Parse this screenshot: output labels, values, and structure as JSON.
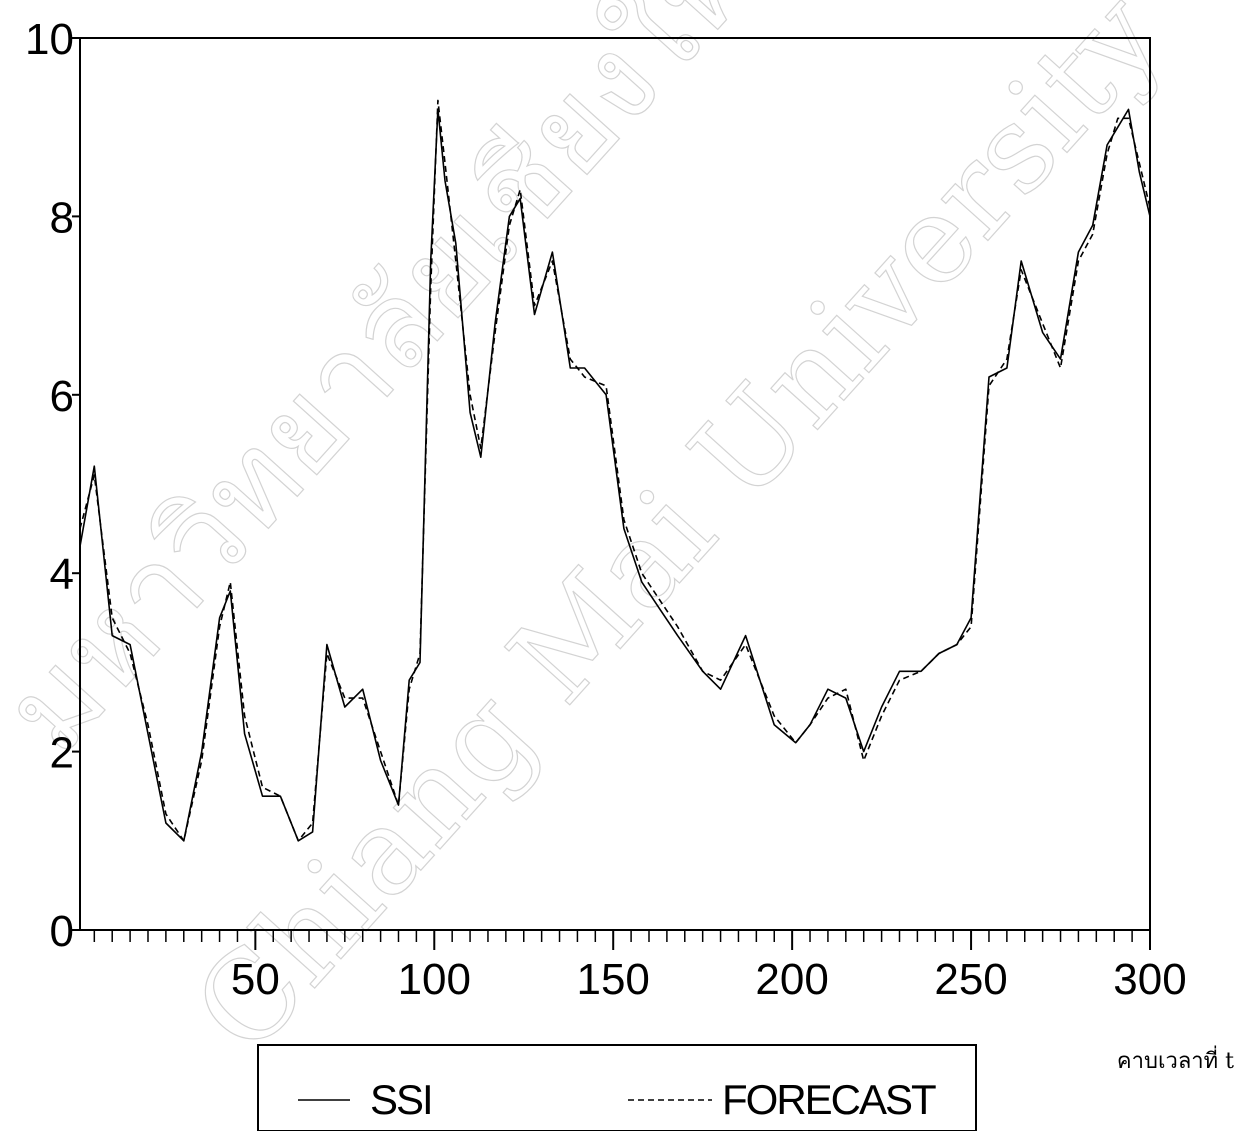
{
  "chart_data": {
    "type": "line",
    "xlabel": "คาบเวลาที่ t",
    "ylabel": "",
    "xlim": [
      1,
      300
    ],
    "ylim": [
      0,
      10
    ],
    "x_ticks": [
      50,
      100,
      150,
      200,
      250,
      300
    ],
    "y_ticks": [
      0,
      2,
      4,
      6,
      8,
      10
    ],
    "x_tick_labels": [
      "50",
      "100",
      "150",
      "200",
      "250",
      "300"
    ],
    "y_tick_labels": [
      "0",
      "2",
      "4",
      "6",
      "8",
      "10"
    ],
    "legend_position": "bottom",
    "grid": false,
    "x": [
      1,
      5,
      10,
      15,
      20,
      25,
      30,
      35,
      40,
      43,
      47,
      52,
      57,
      62,
      66,
      70,
      75,
      80,
      85,
      90,
      93,
      96,
      99,
      101,
      103,
      106,
      110,
      113,
      117,
      121,
      124,
      128,
      133,
      138,
      142,
      148,
      153,
      158,
      163,
      168,
      175,
      180,
      187,
      195,
      201,
      205,
      210,
      215,
      220,
      225,
      230,
      236,
      241,
      246,
      250,
      255,
      260,
      264,
      270,
      275,
      280,
      284,
      288,
      291,
      294,
      297,
      300
    ],
    "series": [
      {
        "name": "SSI",
        "dash": "solid",
        "values": [
          4.3,
          5.2,
          3.3,
          3.2,
          2.2,
          1.2,
          1.0,
          2.0,
          3.5,
          3.8,
          2.2,
          1.5,
          1.5,
          1.0,
          1.1,
          3.2,
          2.5,
          2.7,
          1.9,
          1.4,
          2.8,
          3.0,
          7.5,
          9.2,
          8.4,
          7.7,
          5.8,
          5.3,
          6.8,
          8.0,
          8.2,
          6.9,
          7.6,
          6.3,
          6.3,
          6.0,
          4.5,
          3.9,
          3.6,
          3.3,
          2.9,
          2.7,
          3.3,
          2.3,
          2.1,
          2.3,
          2.7,
          2.6,
          2.0,
          2.5,
          2.9,
          2.9,
          3.1,
          3.2,
          3.5,
          6.2,
          6.3,
          7.5,
          6.7,
          6.4,
          7.6,
          7.9,
          8.8,
          9.0,
          9.2,
          8.5,
          8.0
        ]
      },
      {
        "name": "FORECAST",
        "dash": "dashed",
        "values": [
          4.5,
          5.1,
          3.5,
          3.1,
          2.3,
          1.3,
          1.0,
          1.9,
          3.4,
          3.9,
          2.4,
          1.6,
          1.5,
          1.0,
          1.2,
          3.1,
          2.6,
          2.6,
          2.0,
          1.4,
          2.7,
          3.1,
          7.2,
          9.3,
          8.6,
          7.5,
          6.0,
          5.4,
          6.7,
          7.9,
          8.3,
          7.0,
          7.5,
          6.4,
          6.2,
          6.1,
          4.6,
          4.0,
          3.7,
          3.4,
          2.9,
          2.8,
          3.2,
          2.4,
          2.1,
          2.3,
          2.6,
          2.7,
          1.9,
          2.4,
          2.8,
          2.9,
          3.1,
          3.2,
          3.4,
          6.1,
          6.4,
          7.4,
          6.8,
          6.3,
          7.5,
          7.8,
          8.7,
          9.1,
          9.1,
          8.6,
          8.1
        ]
      }
    ]
  }
}
